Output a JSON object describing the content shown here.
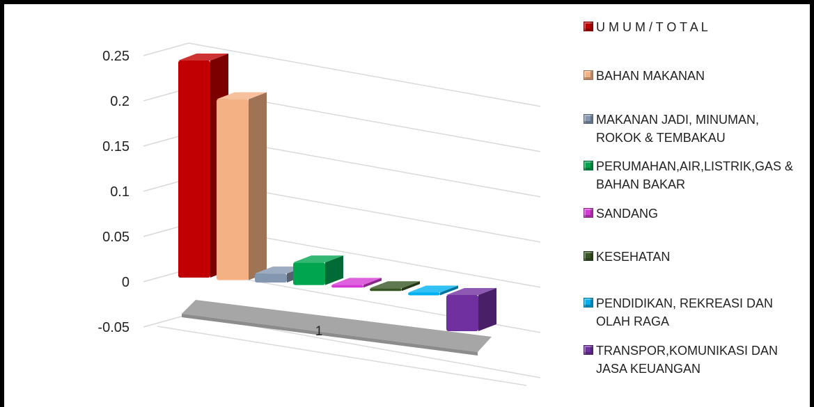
{
  "chart_data": {
    "type": "bar",
    "title": "",
    "xlabel": "",
    "ylabel": "",
    "categories": [
      "1"
    ],
    "ylim": [
      -0.05,
      0.25
    ],
    "yticks": [
      "0.25",
      "0.2",
      "0.15",
      "0.1",
      "0.05",
      "0",
      "-0.05"
    ],
    "grid": true,
    "legend_position": "right",
    "series": [
      {
        "name": "U M U M / T O T A L",
        "values": [
          0.24
        ],
        "color": "#c00000"
      },
      {
        "name": "BAHAN MAKANAN",
        "values": [
          0.2
        ],
        "color": "#f4b183"
      },
      {
        "name": "MAKANAN JADI, MINUMAN, ROKOK & TEMBAKAU",
        "legend_lines": "MAKANAN JADI, MINUMAN,\nROKOK & TEMBAKAU",
        "values": [
          0.01
        ],
        "color": "#8497b0"
      },
      {
        "name": "PERUMAHAN,AIR,LISTRIK,GAS & BAHAN BAKAR",
        "legend_lines": "PERUMAHAN,AIR,LISTRIK,GAS &\nBAHAN BAKAR",
        "values": [
          0.025
        ],
        "color": "#00a550"
      },
      {
        "name": "SANDANG",
        "values": [
          0.003
        ],
        "color": "#d63ad6"
      },
      {
        "name": "KESEHATAN",
        "values": [
          0.002
        ],
        "color": "#375623"
      },
      {
        "name": "PENDIDIKAN, REKREASI DAN OLAH RAGA",
        "legend_lines": "PENDIDIKAN, REKREASI DAN\nOLAH RAGA",
        "values": [
          -0.002
        ],
        "color": "#00b0f0"
      },
      {
        "name": "TRANSPOR,KOMUNIKASI DAN JASA KEUANGAN",
        "legend_lines": "TRANSPOR,KOMUNIKASI DAN\nJASA KEUANGAN",
        "values": [
          -0.04
        ],
        "color": "#7030a0"
      }
    ]
  }
}
